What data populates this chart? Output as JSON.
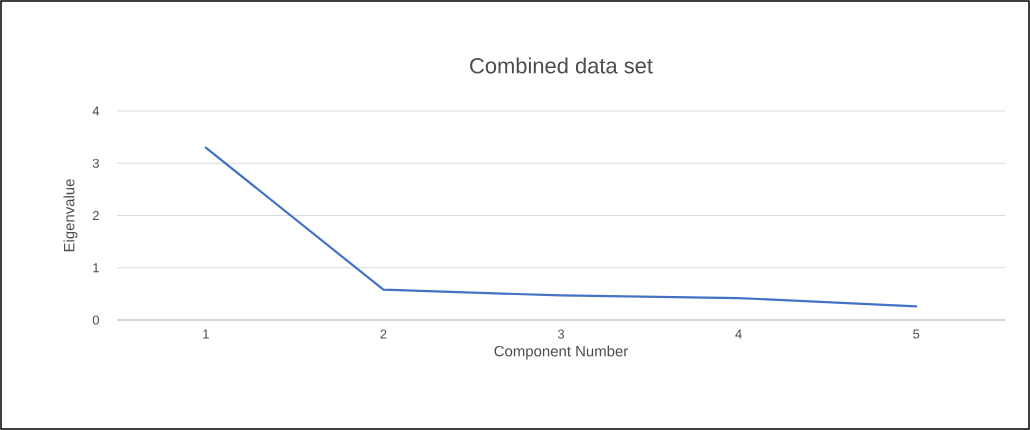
{
  "chart_data": {
    "type": "line",
    "title": "Combined data set",
    "xlabel": "Component Number",
    "ylabel": "Eigenvalue",
    "categories": [
      "1",
      "2",
      "3",
      "4",
      "5"
    ],
    "series": [
      {
        "color": "#4472c4",
        "values": [
          3.3,
          0.58,
          0.47,
          0.42,
          0.26
        ]
      }
    ],
    "ylim": [
      0,
      4
    ],
    "yticks": [
      0,
      1,
      2,
      3,
      4
    ],
    "grid": "y",
    "marker": "none",
    "line_style": "solid"
  }
}
